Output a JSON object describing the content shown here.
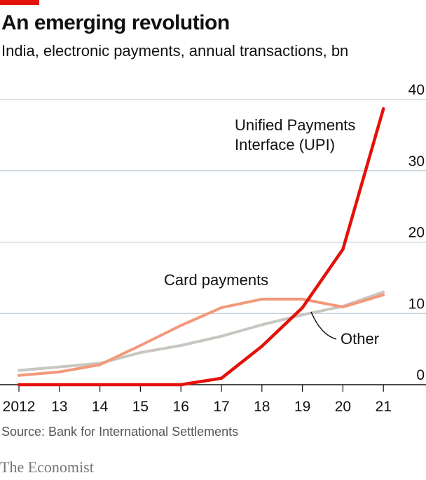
{
  "header": {
    "title": "An emerging revolution",
    "subtitle": "India, electronic payments, annual transactions, bn"
  },
  "footer": {
    "source": "Source: Bank for International Settlements",
    "brand": "The Economist"
  },
  "colors": {
    "accent": "#e3120b",
    "upi": "#e3120b",
    "card": "#f2997a",
    "other": "#c8c6c1",
    "grid": "#b6c3cf"
  },
  "chart_data": {
    "type": "line",
    "title": "An emerging revolution",
    "subtitle": "India, electronic payments, annual transactions, bn",
    "x": [
      "2012",
      "13",
      "14",
      "15",
      "16",
      "17",
      "18",
      "19",
      "20",
      "21"
    ],
    "ylim": [
      0,
      40
    ],
    "yticks": [
      "0",
      "10",
      "20",
      "30",
      "40"
    ],
    "y_axis_position": "right",
    "grid": true,
    "series": [
      {
        "name": "Other",
        "values": [
          2,
          2.5,
          3,
          4.5,
          5.5,
          6.8,
          8.4,
          9.8,
          11,
          13
        ]
      },
      {
        "name": "Card payments",
        "values": [
          1.3,
          1.8,
          2.8,
          5.5,
          8.3,
          10.8,
          12,
          12,
          10.9,
          12.6
        ]
      },
      {
        "name": "Unified Payments Interface (UPI)",
        "values": [
          0,
          0,
          0,
          0,
          0,
          0.9,
          5.4,
          10.8,
          19,
          38.7
        ]
      }
    ],
    "annotations": {
      "upi_line1": "Unified Payments",
      "upi_line2": "Interface (UPI)",
      "card": "Card payments",
      "other": "Other"
    }
  }
}
